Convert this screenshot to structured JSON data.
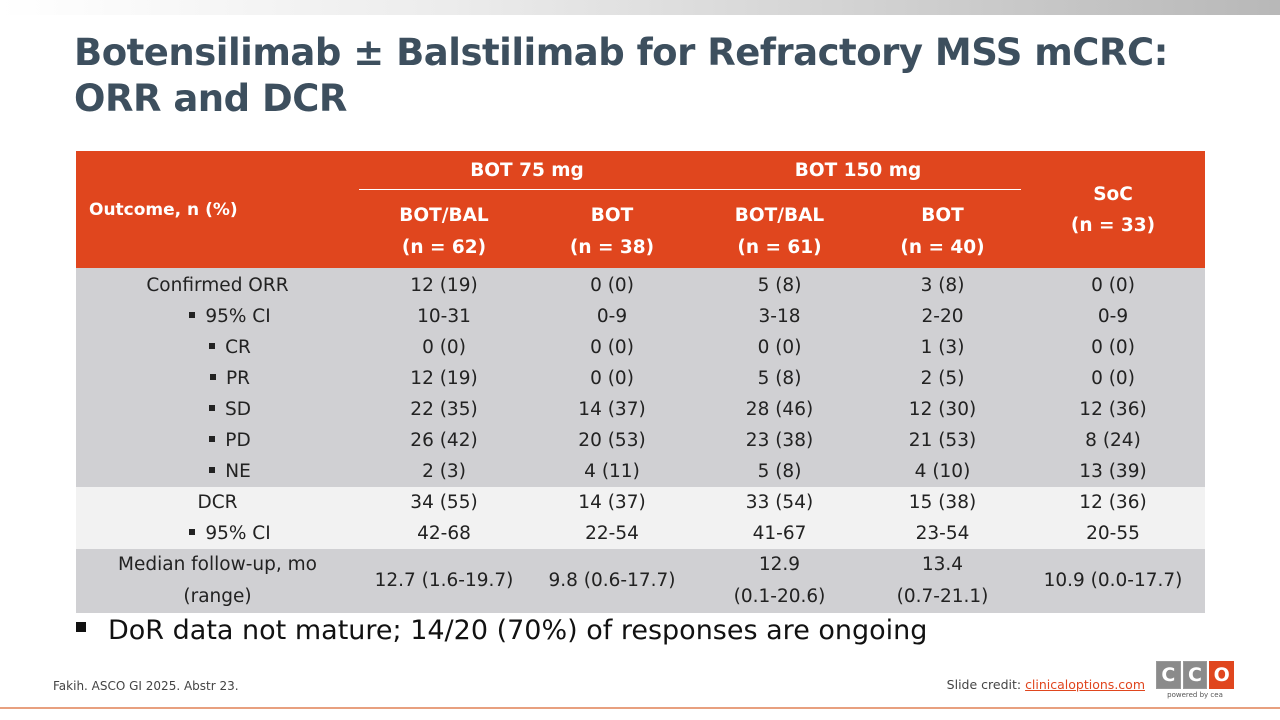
{
  "slide": {
    "title": "Botensilimab ± Balstilimab for Refractory MSS mCRC: ORR and DCR",
    "note": "DoR data not mature; 14/20 (70%) of responses are ongoing",
    "citation": "Fakih. ASCO GI 2025. Abstr 23.",
    "credit_label": "Slide credit: ",
    "credit_link": "clinicaloptions.com",
    "logo_letters": [
      "C",
      "C",
      "O"
    ],
    "logo_tagline": "powered by cea"
  },
  "table": {
    "outcome_header": "Outcome, n (%)",
    "groups": [
      "BOT 75 mg",
      "BOT 150 mg"
    ],
    "columns": [
      {
        "arm": "BOT/BAL",
        "n": "(n = 62)"
      },
      {
        "arm": "BOT",
        "n": "(n = 38)"
      },
      {
        "arm": "BOT/BAL",
        "n": "(n = 61)"
      },
      {
        "arm": "BOT",
        "n": "(n = 40)"
      },
      {
        "arm": "SoC",
        "n": "(n = 33)"
      }
    ],
    "rows": [
      {
        "label": "Confirmed ORR",
        "values": [
          "12 (19)",
          "0 (0)",
          "5 (8)",
          "3 (8)",
          "0 (0)"
        ]
      },
      {
        "label": "95% CI",
        "values": [
          "10-31",
          "0-9",
          "3-18",
          "2-20",
          "0-9"
        ]
      },
      {
        "label": "CR",
        "values": [
          "0 (0)",
          "0 (0)",
          "0 (0)",
          "1 (3)",
          "0 (0)"
        ]
      },
      {
        "label": "PR",
        "values": [
          "12 (19)",
          "0 (0)",
          "5 (8)",
          "2 (5)",
          "0 (0)"
        ]
      },
      {
        "label": "SD",
        "values": [
          "22 (35)",
          "14 (37)",
          "28 (46)",
          "12 (30)",
          "12 (36)"
        ]
      },
      {
        "label": "PD",
        "values": [
          "26 (42)",
          "20 (53)",
          "23 (38)",
          "21 (53)",
          "8 (24)"
        ]
      },
      {
        "label": "NE",
        "values": [
          "2 (3)",
          "4 (11)",
          "5 (8)",
          "4 (10)",
          "13 (39)"
        ]
      },
      {
        "label": "DCR",
        "values": [
          "34 (55)",
          "14 (37)",
          "33 (54)",
          "15 (38)",
          "12 (36)"
        ]
      },
      {
        "label": "95% CI",
        "values": [
          "42-68",
          "22-54",
          "41-67",
          "23-54",
          "20-55"
        ]
      }
    ],
    "followup": {
      "label_line1": "Median follow-up, mo",
      "label_line2": "(range)",
      "values": [
        {
          "line1": "12.7 (1.6-19.7)",
          "line2": ""
        },
        {
          "line1": "9.8 (0.6-17.7)",
          "line2": ""
        },
        {
          "line1": "12.9",
          "line2": "(0.1-20.6)"
        },
        {
          "line1": "13.4",
          "line2": "(0.7-21.1)"
        },
        {
          "line1": "10.9 (0.0-17.7)",
          "line2": ""
        }
      ]
    }
  },
  "colors": {
    "header_bg": "#e0461e",
    "title_color": "#3d4f5e",
    "band_dark": "#d0d0d3",
    "band_light": "#f2f2f2"
  }
}
